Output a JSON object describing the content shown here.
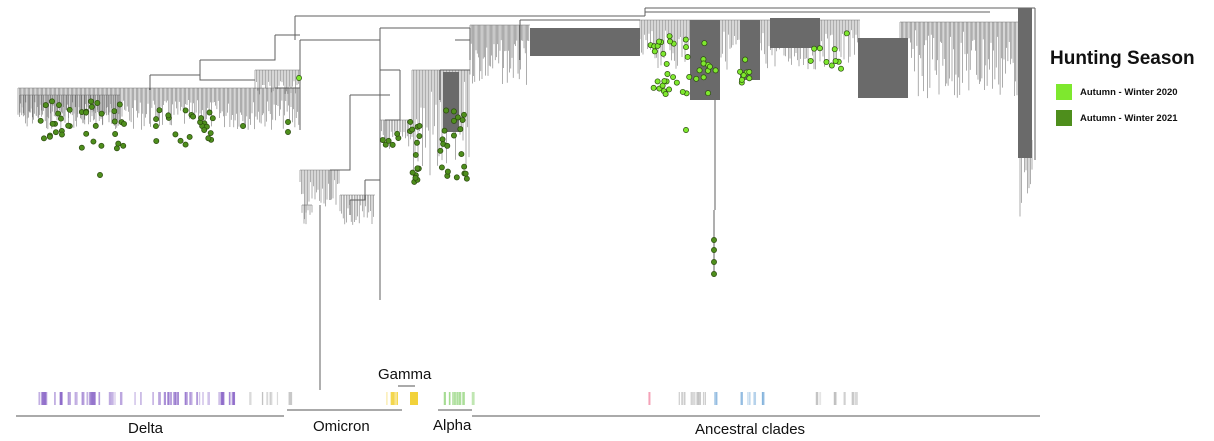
{
  "legend": {
    "title": "Hunting Season",
    "items": [
      {
        "label": "Autumn - Winter 2020",
        "color": "#7ee82e"
      },
      {
        "label": "Autumn - Winter 2021",
        "color": "#4e8e1c"
      }
    ]
  },
  "clades": [
    {
      "key": "delta",
      "label": "Delta"
    },
    {
      "key": "omicron",
      "label": "Omicron"
    },
    {
      "key": "gamma",
      "label": "Gamma"
    },
    {
      "key": "alpha",
      "label": "Alpha"
    },
    {
      "key": "ancestral",
      "label": "Ancestral clades"
    }
  ],
  "colors": {
    "branch": "#5f5f5f",
    "dense_clade": "#6a6a6a",
    "delta_strip": "#8e6bc9",
    "gamma_strip": "#f2d23a",
    "alpha_strip": "#9fd98a",
    "ancestral_strip_pink": "#f08aa6",
    "ancestral_strip_grey": "#bdbdbd",
    "ancestral_strip_blue": "#7fb0db"
  }
}
